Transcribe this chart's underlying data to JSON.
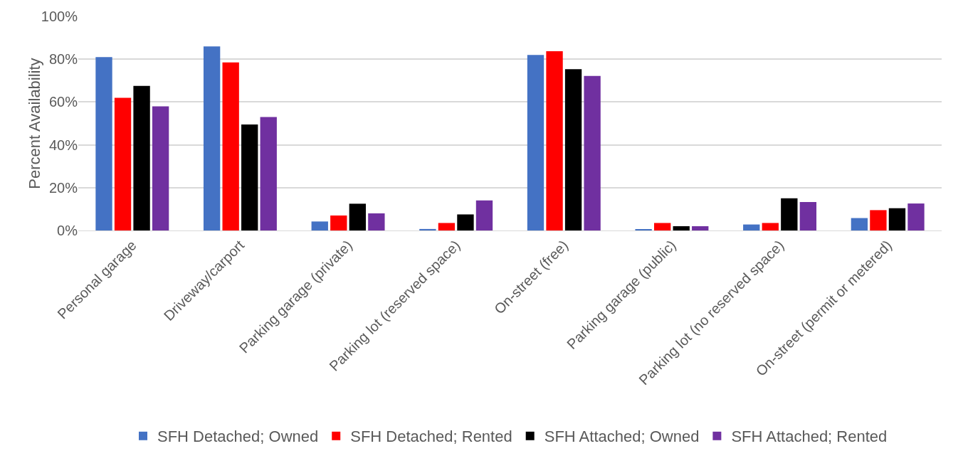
{
  "chart_data": {
    "type": "bar",
    "ylabel": "Percent Availability",
    "categories": [
      "Personal garage",
      "Driveway/carport",
      "Parking garage (private)",
      "Parking lot (reserved space)",
      "On-street (free)",
      "Parking garage (public)",
      "Parking lot (no reserved space)",
      "On-street (permit or metered)"
    ],
    "series": [
      {
        "name": "SFH Detached; Owned",
        "color": "#4472c4",
        "values": [
          81,
          86,
          4.2,
          0.7,
          82,
          0.5,
          2.8,
          5.8
        ]
      },
      {
        "name": "SFH Detached; Rented",
        "color": "#ff0000",
        "values": [
          62,
          78.5,
          7,
          3.5,
          83.7,
          3.5,
          3.5,
          9.5
        ]
      },
      {
        "name": "SFH Attached; Owned",
        "color": "#000000",
        "values": [
          67.5,
          49.5,
          12.5,
          7.5,
          75.3,
          2,
          15,
          10.4
        ]
      },
      {
        "name": "SFH Attached; Rented",
        "color": "#7030a0",
        "values": [
          58,
          53,
          8,
          14,
          72.2,
          2,
          13.3,
          12.6
        ]
      }
    ],
    "ylim": [
      0,
      100
    ],
    "yticks": [
      {
        "value": 0,
        "label": "0%"
      },
      {
        "value": 20,
        "label": "20%"
      },
      {
        "value": 40,
        "label": "40%"
      },
      {
        "value": 60,
        "label": "60%"
      },
      {
        "value": 80,
        "label": "80%"
      },
      {
        "value": 100,
        "label": "100%"
      }
    ],
    "grid": "y",
    "legend": "bottom"
  }
}
